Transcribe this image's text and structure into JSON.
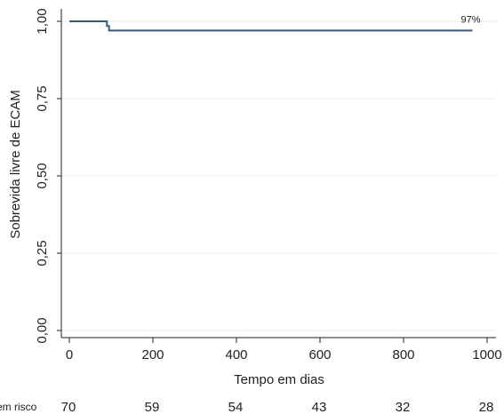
{
  "chart_data": {
    "type": "line",
    "xlabel": "Tempo em dias",
    "ylabel": "Sobrevida livre de ECAM",
    "xlim": [
      0,
      1000
    ],
    "ylim": [
      0,
      1
    ],
    "x_ticks": [
      0,
      200,
      400,
      600,
      800,
      1000
    ],
    "x_tick_labels": [
      "0",
      "200",
      "400",
      "600",
      "800",
      "1000"
    ],
    "y_ticks": [
      0,
      0.25,
      0.5,
      0.75,
      1.0
    ],
    "y_tick_labels": [
      "0,00",
      "0,25",
      "0,50",
      "0,75",
      "1,00"
    ],
    "grid": "horizontal",
    "series": [
      {
        "step": true,
        "color": "#3c5a78",
        "x": [
          0,
          90,
          90,
          95,
          95,
          965
        ],
        "y": [
          1.0,
          1.0,
          0.985,
          0.985,
          0.97,
          0.97
        ]
      }
    ],
    "annotations": [
      {
        "text": "97%",
        "x": 965,
        "y": 0.97
      }
    ],
    "risk_table": {
      "label": "em risco",
      "x": [
        0,
        200,
        400,
        600,
        800,
        1000
      ],
      "values": [
        "70",
        "59",
        "54",
        "43",
        "32",
        "28"
      ]
    }
  }
}
